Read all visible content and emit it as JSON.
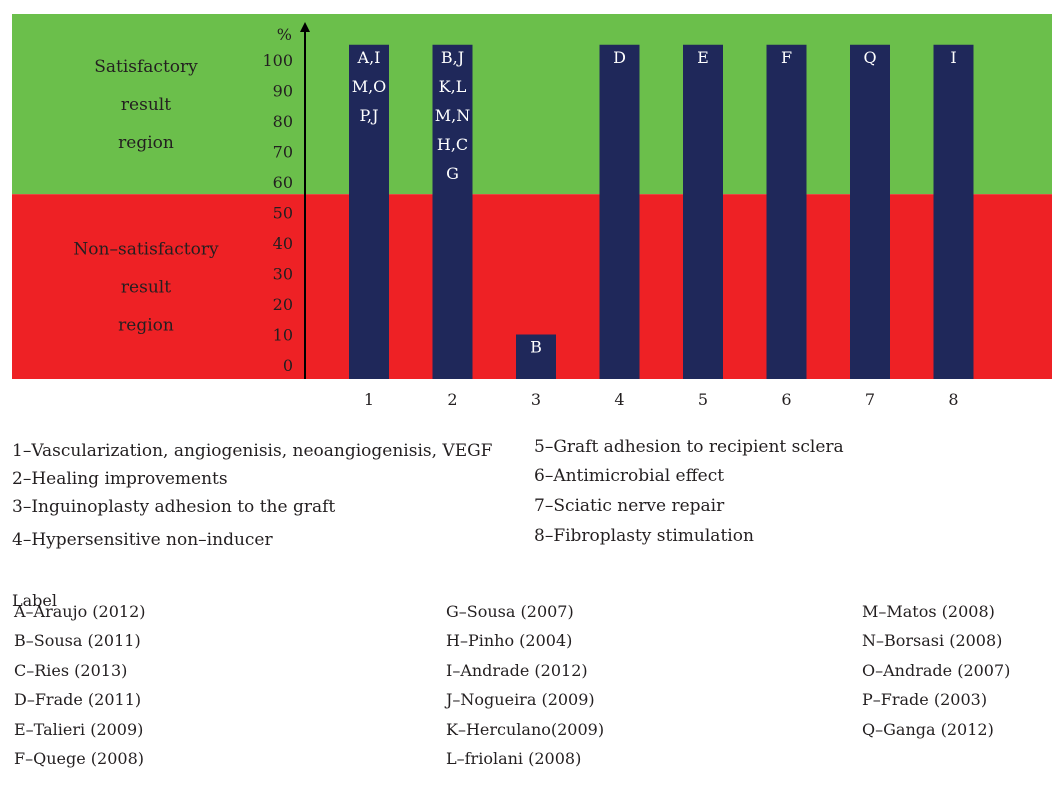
{
  "chart_data": {
    "type": "bar",
    "ylabel": "%",
    "ylim": [
      0,
      105
    ],
    "yticks": [
      "100",
      "90",
      "80",
      "70",
      "60",
      "50",
      "40",
      "30",
      "20",
      "10",
      "0"
    ],
    "categories": [
      "1",
      "2",
      "3",
      "4",
      "5",
      "6",
      "7",
      "8"
    ],
    "values": [
      105,
      105,
      10,
      105,
      105,
      105,
      105,
      105
    ],
    "bar_labels": [
      [
        "A,I",
        "M,O",
        "P,J"
      ],
      [
        "B,J",
        "K,L",
        "M,N",
        "H,C",
        "G"
      ],
      [
        "B"
      ],
      [
        "D"
      ],
      [
        "E"
      ],
      [
        "F"
      ],
      [
        "Q"
      ],
      [
        "I"
      ]
    ],
    "regions": [
      {
        "lines": [
          "Satisfactory",
          "result",
          "region"
        ],
        "from": 56,
        "to": 105,
        "color": "#6bbf4b"
      },
      {
        "lines": [
          "Non–satisfactory",
          "result",
          "region"
        ],
        "from": 0,
        "to": 56,
        "color": "#ee2125"
      }
    ],
    "bar_color": "#1f285a",
    "legend": [
      "1–Vascularization, angiogenisis, neoangiogenisis, VEGF",
      "2–Healing improvements",
      "3–Inguinoplasty adhesion to the graft",
      "4–Hypersensitive non–inducer",
      "5–Graft adhesion to recipient sclera",
      "6–Antimicrobial effect",
      "7–Sciatic nerve repair",
      "8–Fibroplasty stimulation"
    ]
  },
  "label_heading": "Label",
  "labels": [
    "A–Araujo (2012)",
    "B–Sousa (2011)",
    "C–Ries (2013)",
    "D–Frade (2011)",
    "E–Talieri (2009)",
    "F–Quege (2008)",
    "G–Sousa (2007)",
    "H–Pinho (2004)",
    "I–Andrade (2012)",
    "J–Nogueira (2009)",
    "K–Herculano(2009)",
    "L–friolani (2008)",
    "M–Matos (2008)",
    "N–Borsasi (2008)",
    "O–Andrade (2007)",
    "P–Frade (2003)",
    "Q–Ganga (2012)"
  ]
}
